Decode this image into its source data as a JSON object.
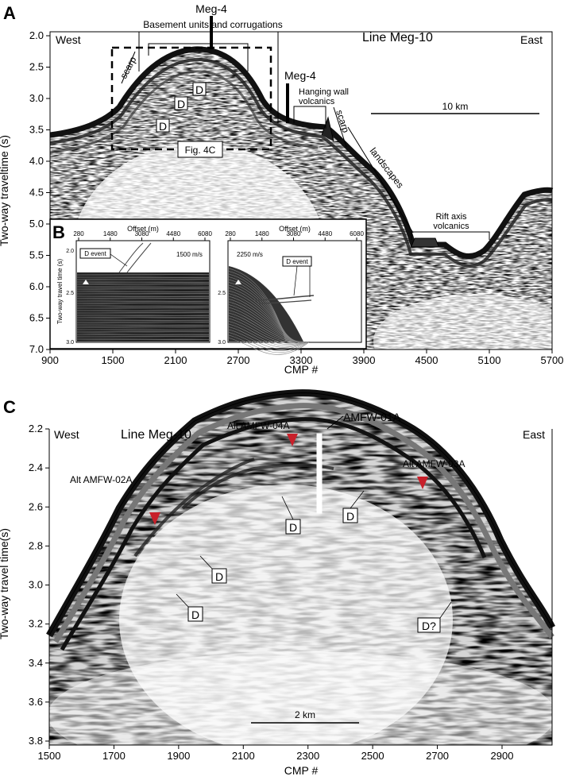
{
  "panelA": {
    "letter": "A",
    "west": "West",
    "east": "East",
    "line": "Line Meg-10",
    "ylabel": "Two-way traveltime (s)",
    "xlabel": "CMP #",
    "yticks": [
      "2.0",
      "2.5",
      "3.0",
      "3.5",
      "4.0",
      "4.5",
      "5.0",
      "5.5",
      "6.0",
      "6.5",
      "7.0"
    ],
    "xticks": [
      "900",
      "1500",
      "2100",
      "2700",
      "3300",
      "3900",
      "4500",
      "5100",
      "5700"
    ],
    "meg4_top": "Meg-4",
    "basement": "Basement units and corrugations",
    "meg4_side": "Meg-4",
    "hanging_wall": "Hanging wall\nvolcanics",
    "hanging_wall_1": "Hanging wall",
    "hanging_wall_2": "volcanics",
    "scarp_left": "scarp",
    "scarp_right": "scarp",
    "landscapes": "landscapes",
    "rift_axis_1": "Rift axis",
    "rift_axis_2": "volcanics",
    "scale": "10 km",
    "fig4c": "Fig. 4C",
    "d": "D"
  },
  "panelB": {
    "letter": "B",
    "offset_label": "Offset (m)",
    "offset_ticks": [
      "280",
      "1480",
      "3080",
      "4480",
      "6080"
    ],
    "ylabel": "Two-way travel time (s)",
    "yticks": [
      "2.0",
      "2.5",
      "3.0"
    ],
    "left_event": "D event",
    "left_velocity": "1500 m/s",
    "right_event": "D event",
    "right_velocity": "2250 m/s"
  },
  "panelC": {
    "letter": "C",
    "west": "West",
    "east": "East",
    "line": "Line Meg-10",
    "ylabel": "Two-way travel time(s)",
    "xlabel": "CMP #",
    "yticks": [
      "2.2",
      "2.4",
      "2.6",
      "2.8",
      "3.0",
      "3.2",
      "3.4",
      "3.6",
      "3.8"
    ],
    "xticks": [
      "1500",
      "1700",
      "1900",
      "2100",
      "2300",
      "2500",
      "2700",
      "2900"
    ],
    "amfw01": "AMFW-01A",
    "alt04": "Alt AMFW-04A",
    "alt02": "Alt AMFW-02A",
    "alt03": "Alt AMFW-03A",
    "scale": "2 km",
    "d": "D",
    "dq": "D?"
  },
  "colors": {
    "marker_red": "#c8202a"
  }
}
